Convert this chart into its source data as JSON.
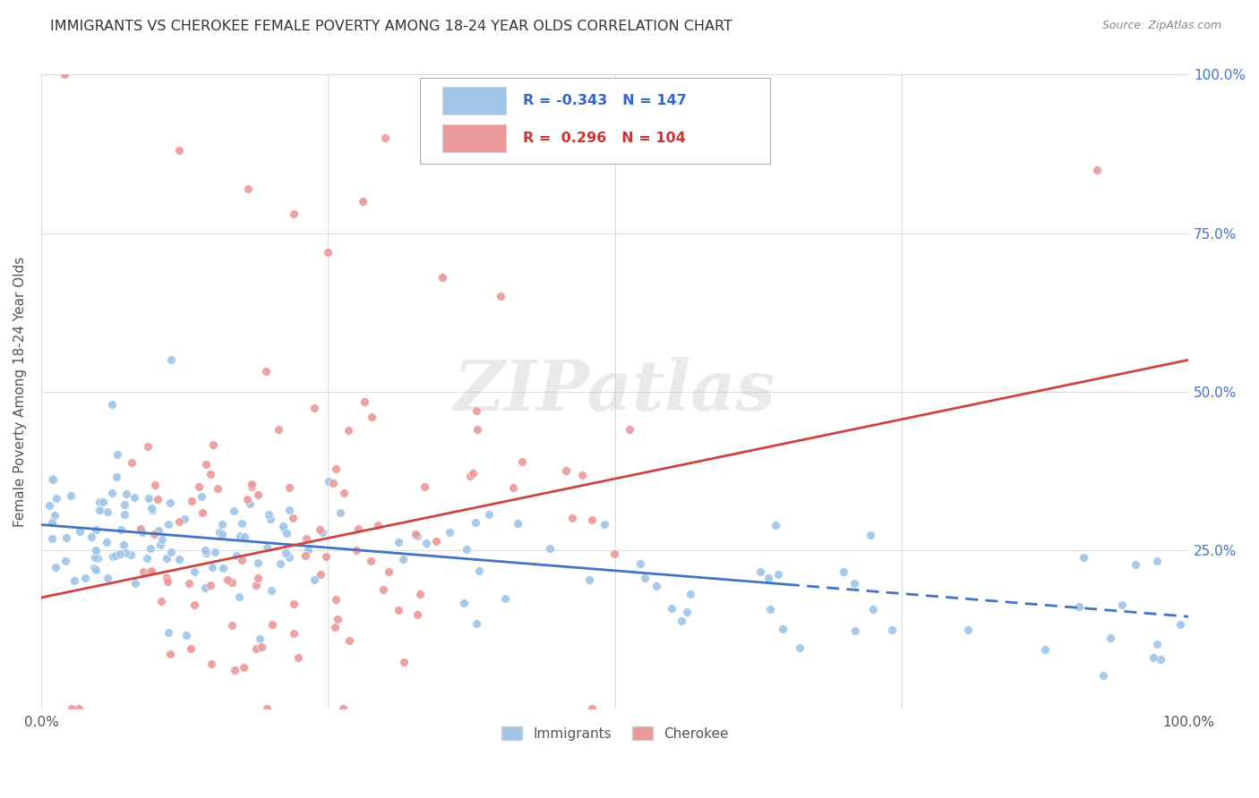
{
  "title": "IMMIGRANTS VS CHEROKEE FEMALE POVERTY AMONG 18-24 YEAR OLDS CORRELATION CHART",
  "source": "Source: ZipAtlas.com",
  "ylabel": "Female Poverty Among 18-24 Year Olds",
  "blue_color": "#9fc5e8",
  "pink_color": "#ea9999",
  "blue_line_color": "#4472c4",
  "pink_line_color": "#cc4444",
  "background_color": "#ffffff",
  "grid_color": "#dddddd",
  "watermark_text": "ZIPatlas",
  "blue_R": "R = -0.343",
  "blue_N": "N = 147",
  "pink_R": "R =  0.296",
  "pink_N": "N = 104",
  "blue_intercept": 0.29,
  "blue_slope": -0.145,
  "pink_intercept": 0.175,
  "pink_slope": 0.375
}
